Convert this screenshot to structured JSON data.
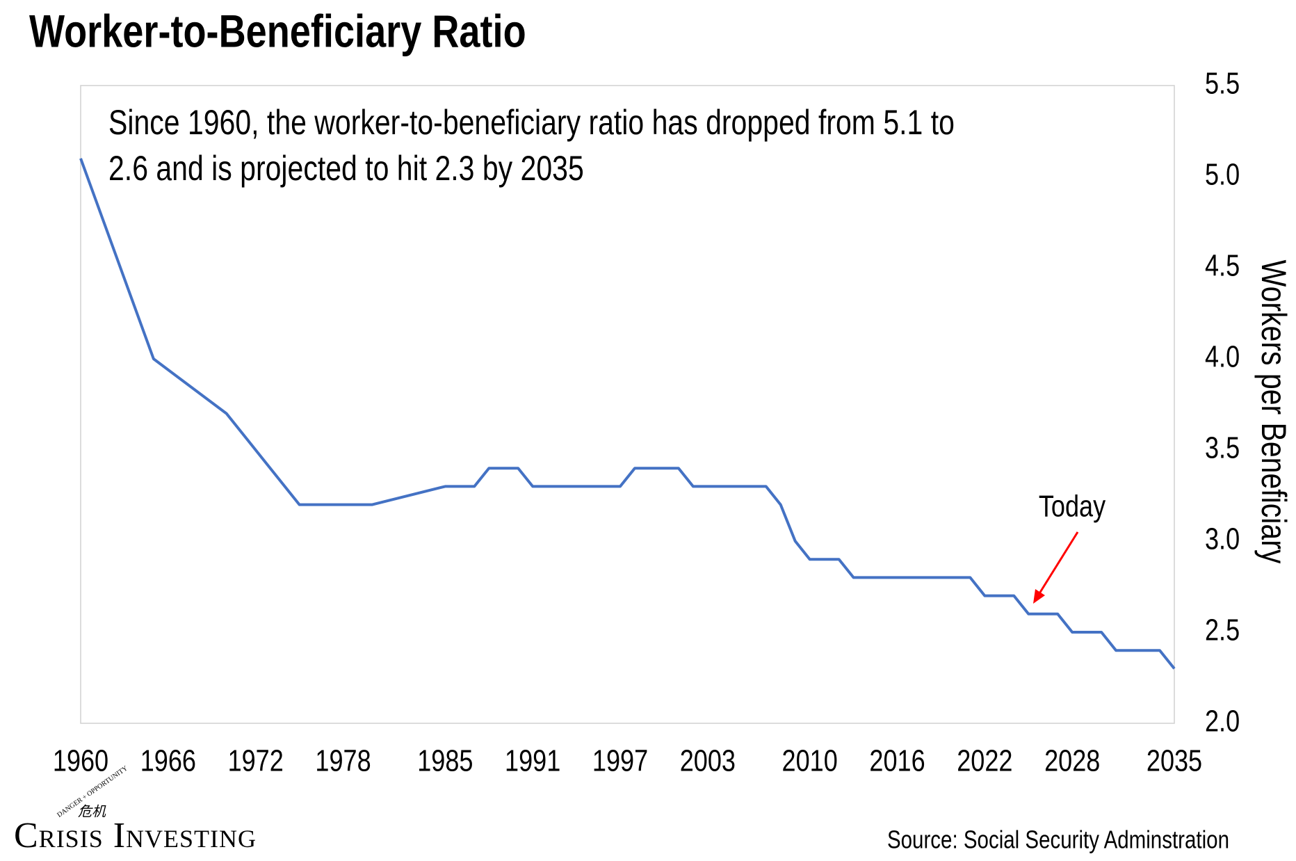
{
  "chart_data": {
    "type": "line",
    "title": "Worker-to-Beneficiary Ratio",
    "annotation": [
      "Since 1960, the worker-to-beneficiary ratio has dropped from 5.1 to",
      "2.6 and is projected to hit 2.3 by 2035"
    ],
    "y_axis_label": "Workers per Beneficiary",
    "today_label": "Today",
    "source": "Source: Social Security Adminstration",
    "logo": {
      "name": "Crisis Investing",
      "tagline": "DANGER + OPPORTUNITY",
      "glyphs": "危机"
    },
    "x": [
      1960,
      1965,
      1970,
      1975,
      1980,
      1985,
      1987,
      1988,
      1990,
      1991,
      1997,
      1998,
      2001,
      2002,
      2007,
      2008,
      2009,
      2010,
      2012,
      2013,
      2021,
      2022,
      2024,
      2025,
      2027,
      2028,
      2030,
      2031,
      2034,
      2035
    ],
    "series": [
      {
        "name": "Workers per Beneficiary",
        "color": "#4472c4",
        "values": [
          5.1,
          4.0,
          3.7,
          3.2,
          3.2,
          3.3,
          3.3,
          3.4,
          3.4,
          3.3,
          3.3,
          3.4,
          3.4,
          3.3,
          3.3,
          3.2,
          3.0,
          2.9,
          2.9,
          2.8,
          2.8,
          2.7,
          2.7,
          2.6,
          2.6,
          2.5,
          2.5,
          2.4,
          2.4,
          2.3
        ]
      }
    ],
    "xlim": [
      1960,
      2035
    ],
    "xticks": [
      1960,
      1966,
      1972,
      1978,
      1985,
      1991,
      1997,
      2003,
      2010,
      2016,
      2022,
      2028,
      2035
    ],
    "ylim": [
      2.0,
      5.5
    ],
    "yticks": [
      {
        "value": 2.0,
        "label": "2.0"
      },
      {
        "value": 2.5,
        "label": "2.5"
      },
      {
        "value": 3.0,
        "label": "3.0"
      },
      {
        "value": 3.5,
        "label": "3.5"
      },
      {
        "value": 4.0,
        "label": "4.0"
      },
      {
        "value": 4.5,
        "label": "4.5"
      },
      {
        "value": 5.0,
        "label": "5.0"
      },
      {
        "value": 5.5,
        "label": "5.5"
      }
    ],
    "y_axis_side": "right",
    "grid": false
  }
}
